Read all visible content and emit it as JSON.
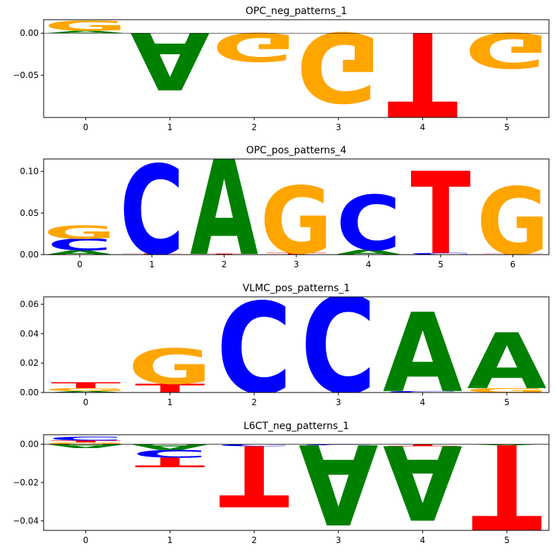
{
  "colors": {
    "A": "#008000",
    "C": "#0000ff",
    "G": "#ffa500",
    "T": "#ff0000"
  },
  "chart_data": [
    {
      "type": "sequence-logo",
      "title": "OPC_neg_patterns_1",
      "xticks": [
        0,
        1,
        2,
        3,
        4,
        5
      ],
      "yticks": [
        0.0,
        -0.05
      ],
      "ytick_labels": [
        "0.00",
        "−0.05"
      ],
      "ylim": [
        -0.1,
        0.016
      ],
      "positions": [
        {
          "pos": 0,
          "letters": [
            {
              "b": "A",
              "v": 0.003
            },
            {
              "b": "G",
              "v": 0.012
            }
          ]
        },
        {
          "pos": 1,
          "letters": [
            {
              "b": "A",
              "v": -0.068
            }
          ]
        },
        {
          "pos": 2,
          "letters": [
            {
              "b": "G",
              "v": -0.034
            }
          ]
        },
        {
          "pos": 3,
          "letters": [
            {
              "b": "G",
              "v": -0.083
            }
          ]
        },
        {
          "pos": 4,
          "letters": [
            {
              "b": "T",
              "v": -0.101
            }
          ]
        },
        {
          "pos": 5,
          "letters": [
            {
              "b": "G",
              "v": -0.042
            }
          ]
        }
      ]
    },
    {
      "type": "sequence-logo",
      "title": "OPC_pos_patterns_4",
      "xticks": [
        0,
        1,
        2,
        3,
        4,
        5,
        6
      ],
      "yticks": [
        0.0,
        0.05,
        0.1
      ],
      "ytick_labels": [
        "0.00",
        "0.05",
        "0.10"
      ],
      "ylim": [
        0,
        0.115
      ],
      "positions": [
        {
          "pos": 0,
          "letters": [
            {
              "b": "A",
              "v": 0.005
            },
            {
              "b": "G",
              "v": 0.016
            },
            {
              "b": "C",
              "v": 0.014
            }
          ]
        },
        {
          "pos": 1,
          "letters": [
            {
              "b": "T",
              "v": 0.001
            },
            {
              "b": "C",
              "v": 0.108
            }
          ]
        },
        {
          "pos": 2,
          "letters": [
            {
              "b": "T",
              "v": 0.001
            },
            {
              "b": "A",
              "v": 0.118
            }
          ]
        },
        {
          "pos": 3,
          "letters": [
            {
              "b": "T",
              "v": 0.002
            },
            {
              "b": "G",
              "v": 0.081
            }
          ]
        },
        {
          "pos": 4,
          "letters": [
            {
              "b": "A",
              "v": 0.006
            },
            {
              "b": "C",
              "v": 0.066
            }
          ]
        },
        {
          "pos": 5,
          "letters": [
            {
              "b": "C",
              "v": 0.002
            },
            {
              "b": "T",
              "v": 0.099
            }
          ]
        },
        {
          "pos": 6,
          "letters": [
            {
              "b": "T",
              "v": 0.001
            },
            {
              "b": "G",
              "v": 0.081
            }
          ]
        }
      ]
    },
    {
      "type": "sequence-logo",
      "title": "VLMC_pos_patterns_1",
      "xticks": [
        0,
        1,
        2,
        3,
        4,
        5
      ],
      "yticks": [
        0.0,
        0.02,
        0.04,
        0.06
      ],
      "ytick_labels": [
        "0.00",
        "0.02",
        "0.04",
        "0.06"
      ],
      "ylim": [
        0,
        0.065
      ],
      "positions": [
        {
          "pos": 0,
          "letters": [
            {
              "b": "A",
              "v": 0.001
            },
            {
              "b": "T",
              "v": 0.004
            },
            {
              "b": "G",
              "v": 0.002
            }
          ]
        },
        {
          "pos": 1,
          "letters": [
            {
              "b": "T",
              "v": 0.006
            },
            {
              "b": "G",
              "v": 0.024
            }
          ]
        },
        {
          "pos": 2,
          "letters": [
            {
              "b": "C",
              "v": 0.062
            }
          ]
        },
        {
          "pos": 3,
          "letters": [
            {
              "b": "C",
              "v": 0.066
            }
          ]
        },
        {
          "pos": 4,
          "letters": [
            {
              "b": "C",
              "v": 0.001
            },
            {
              "b": "A",
              "v": 0.054
            }
          ]
        },
        {
          "pos": 5,
          "letters": [
            {
              "b": "G",
              "v": 0.003
            },
            {
              "b": "A",
              "v": 0.038
            }
          ]
        }
      ]
    },
    {
      "type": "sequence-logo",
      "title": "L6CT_neg_patterns_1",
      "xticks": [
        0,
        1,
        2,
        3,
        4,
        5
      ],
      "yticks": [
        0.0,
        -0.02,
        -0.04
      ],
      "ytick_labels": [
        "0.00",
        "−0.02",
        "−0.04"
      ],
      "ylim": [
        -0.045,
        0.005
      ],
      "positions": [
        {
          "pos": 0,
          "letters": [
            {
              "b": "G",
              "v": 0.001
            },
            {
              "b": "T",
              "v": 0.001
            },
            {
              "b": "C",
              "v": 0.002
            },
            {
              "b": "A",
              "v": -0.002
            }
          ]
        },
        {
          "pos": 1,
          "letters": [
            {
              "b": "A",
              "v": -0.003
            },
            {
              "b": "C",
              "v": -0.004
            },
            {
              "b": "T",
              "v": -0.005
            }
          ]
        },
        {
          "pos": 2,
          "letters": [
            {
              "b": "C",
              "v": -0.001
            },
            {
              "b": "T",
              "v": -0.032
            }
          ]
        },
        {
          "pos": 3,
          "letters": [
            {
              "b": "C",
              "v": -0.0005
            },
            {
              "b": "A",
              "v": -0.042
            }
          ]
        },
        {
          "pos": 4,
          "letters": [
            {
              "b": "T",
              "v": -0.001
            },
            {
              "b": "A",
              "v": -0.039
            }
          ]
        },
        {
          "pos": 5,
          "letters": [
            {
              "b": "A",
              "v": -0.0005
            },
            {
              "b": "T",
              "v": -0.046
            }
          ]
        }
      ]
    }
  ]
}
